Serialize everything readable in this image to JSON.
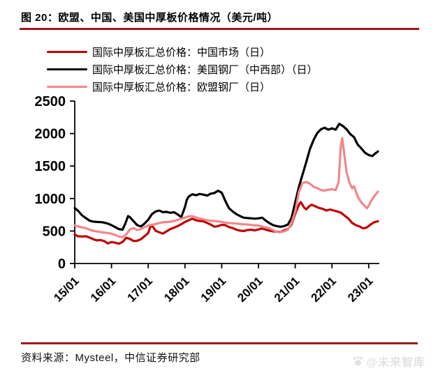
{
  "page": {
    "title": "图 20：欧盟、中国、美国中厚板价格情况（美元/吨）",
    "source": "资料来源：Mysteel，中信证券研究部",
    "watermark": "@未来智库",
    "accent_color": "#A01818"
  },
  "chart_data": {
    "type": "line",
    "title": "欧盟、中国、美国中厚板价格情况",
    "unit": "美元/吨",
    "grid": false,
    "legend_position": "top-left",
    "ylim": [
      0,
      2500
    ],
    "yticks": [
      0,
      500,
      1000,
      1500,
      2000,
      2500
    ],
    "x_range": [
      15,
      23.3
    ],
    "xticks": [
      {
        "x": 15,
        "label": "15/01"
      },
      {
        "x": 16,
        "label": "16/01"
      },
      {
        "x": 17,
        "label": "17/01"
      },
      {
        "x": 18,
        "label": "18/01"
      },
      {
        "x": 19,
        "label": "19/01"
      },
      {
        "x": 20,
        "label": "20/01"
      },
      {
        "x": 21,
        "label": "21/01"
      },
      {
        "x": 22,
        "label": "22/01"
      },
      {
        "x": 23,
        "label": "23/01"
      }
    ],
    "series": [
      {
        "name": "国际中厚板汇总价格：中国市场（日）",
        "color": "#C00000",
        "points": [
          [
            15.0,
            450
          ],
          [
            15.08,
            420
          ],
          [
            15.2,
            415
          ],
          [
            15.3,
            420
          ],
          [
            15.4,
            400
          ],
          [
            15.5,
            375
          ],
          [
            15.6,
            355
          ],
          [
            15.7,
            360
          ],
          [
            15.8,
            345
          ],
          [
            15.9,
            310
          ],
          [
            16.0,
            330
          ],
          [
            16.1,
            320
          ],
          [
            16.2,
            305
          ],
          [
            16.3,
            330
          ],
          [
            16.4,
            395
          ],
          [
            16.5,
            380
          ],
          [
            16.6,
            345
          ],
          [
            16.7,
            350
          ],
          [
            16.8,
            375
          ],
          [
            16.9,
            420
          ],
          [
            17.0,
            470
          ],
          [
            17.05,
            555
          ],
          [
            17.1,
            585
          ],
          [
            17.2,
            505
          ],
          [
            17.3,
            480
          ],
          [
            17.4,
            460
          ],
          [
            17.5,
            495
          ],
          [
            17.6,
            530
          ],
          [
            17.7,
            550
          ],
          [
            17.8,
            575
          ],
          [
            17.9,
            605
          ],
          [
            18.0,
            640
          ],
          [
            18.1,
            665
          ],
          [
            18.2,
            690
          ],
          [
            18.3,
            665
          ],
          [
            18.4,
            655
          ],
          [
            18.5,
            650
          ],
          [
            18.6,
            625
          ],
          [
            18.7,
            600
          ],
          [
            18.8,
            565
          ],
          [
            18.9,
            575
          ],
          [
            19.0,
            595
          ],
          [
            19.1,
            590
          ],
          [
            19.2,
            560
          ],
          [
            19.3,
            545
          ],
          [
            19.4,
            520
          ],
          [
            19.5,
            505
          ],
          [
            19.6,
            500
          ],
          [
            19.7,
            515
          ],
          [
            19.8,
            520
          ],
          [
            19.9,
            510
          ],
          [
            20.0,
            525
          ],
          [
            20.1,
            540
          ],
          [
            20.2,
            520
          ],
          [
            20.3,
            505
          ],
          [
            20.4,
            495
          ],
          [
            20.5,
            490
          ],
          [
            20.6,
            485
          ],
          [
            20.7,
            510
          ],
          [
            20.8,
            530
          ],
          [
            20.9,
            600
          ],
          [
            21.0,
            765
          ],
          [
            21.1,
            905
          ],
          [
            21.15,
            945
          ],
          [
            21.2,
            900
          ],
          [
            21.25,
            855
          ],
          [
            21.3,
            835
          ],
          [
            21.4,
            890
          ],
          [
            21.45,
            905
          ],
          [
            21.55,
            880
          ],
          [
            21.65,
            855
          ],
          [
            21.75,
            840
          ],
          [
            21.85,
            815
          ],
          [
            21.95,
            830
          ],
          [
            22.05,
            815
          ],
          [
            22.15,
            800
          ],
          [
            22.25,
            780
          ],
          [
            22.35,
            735
          ],
          [
            22.45,
            690
          ],
          [
            22.55,
            625
          ],
          [
            22.65,
            590
          ],
          [
            22.75,
            570
          ],
          [
            22.85,
            540
          ],
          [
            22.95,
            555
          ],
          [
            23.05,
            600
          ],
          [
            23.15,
            635
          ],
          [
            23.25,
            650
          ]
        ]
      },
      {
        "name": "国际中厚板汇总价格：美国钢厂（中西部）（日）",
        "color": "#000000",
        "points": [
          [
            15.0,
            855
          ],
          [
            15.1,
            805
          ],
          [
            15.2,
            740
          ],
          [
            15.3,
            700
          ],
          [
            15.4,
            660
          ],
          [
            15.5,
            645
          ],
          [
            15.6,
            640
          ],
          [
            15.75,
            635
          ],
          [
            15.9,
            615
          ],
          [
            16.0,
            590
          ],
          [
            16.1,
            560
          ],
          [
            16.2,
            530
          ],
          [
            16.3,
            520
          ],
          [
            16.38,
            620
          ],
          [
            16.45,
            730
          ],
          [
            16.5,
            715
          ],
          [
            16.6,
            650
          ],
          [
            16.7,
            590
          ],
          [
            16.8,
            570
          ],
          [
            16.9,
            615
          ],
          [
            17.0,
            675
          ],
          [
            17.1,
            760
          ],
          [
            17.2,
            800
          ],
          [
            17.3,
            815
          ],
          [
            17.4,
            790
          ],
          [
            17.5,
            795
          ],
          [
            17.6,
            780
          ],
          [
            17.7,
            790
          ],
          [
            17.8,
            755
          ],
          [
            17.9,
            715
          ],
          [
            18.0,
            870
          ],
          [
            18.05,
            980
          ],
          [
            18.1,
            1030
          ],
          [
            18.2,
            1065
          ],
          [
            18.3,
            1050
          ],
          [
            18.4,
            1070
          ],
          [
            18.5,
            1060
          ],
          [
            18.6,
            1045
          ],
          [
            18.7,
            1075
          ],
          [
            18.8,
            1085
          ],
          [
            18.9,
            1120
          ],
          [
            19.0,
            1090
          ],
          [
            19.1,
            960
          ],
          [
            19.2,
            850
          ],
          [
            19.3,
            800
          ],
          [
            19.4,
            760
          ],
          [
            19.5,
            730
          ],
          [
            19.6,
            705
          ],
          [
            19.7,
            700
          ],
          [
            19.8,
            695
          ],
          [
            19.9,
            690
          ],
          [
            20.0,
            695
          ],
          [
            20.1,
            705
          ],
          [
            20.2,
            660
          ],
          [
            20.3,
            620
          ],
          [
            20.4,
            590
          ],
          [
            20.5,
            575
          ],
          [
            20.6,
            565
          ],
          [
            20.7,
            575
          ],
          [
            20.8,
            600
          ],
          [
            20.9,
            700
          ],
          [
            21.0,
            940
          ],
          [
            21.1,
            1180
          ],
          [
            21.2,
            1370
          ],
          [
            21.3,
            1560
          ],
          [
            21.4,
            1760
          ],
          [
            21.5,
            1900
          ],
          [
            21.6,
            2010
          ],
          [
            21.7,
            2065
          ],
          [
            21.8,
            2090
          ],
          [
            21.9,
            2060
          ],
          [
            22.0,
            2080
          ],
          [
            22.1,
            2060
          ],
          [
            22.2,
            2150
          ],
          [
            22.3,
            2115
          ],
          [
            22.4,
            2065
          ],
          [
            22.5,
            1990
          ],
          [
            22.6,
            1945
          ],
          [
            22.7,
            1830
          ],
          [
            22.8,
            1770
          ],
          [
            22.9,
            1705
          ],
          [
            23.0,
            1670
          ],
          [
            23.1,
            1655
          ],
          [
            23.15,
            1680
          ],
          [
            23.25,
            1725
          ]
        ]
      },
      {
        "name": "国际中厚板汇总价格：欧盟钢厂（日）",
        "color": "#F2868B",
        "points": [
          [
            15.0,
            585
          ],
          [
            15.1,
            570
          ],
          [
            15.2,
            555
          ],
          [
            15.3,
            545
          ],
          [
            15.45,
            510
          ],
          [
            15.6,
            495
          ],
          [
            15.75,
            480
          ],
          [
            15.9,
            470
          ],
          [
            16.0,
            458
          ],
          [
            16.1,
            440
          ],
          [
            16.2,
            415
          ],
          [
            16.3,
            405
          ],
          [
            16.4,
            445
          ],
          [
            16.5,
            525
          ],
          [
            16.6,
            545
          ],
          [
            16.7,
            515
          ],
          [
            16.8,
            530
          ],
          [
            16.9,
            560
          ],
          [
            17.0,
            585
          ],
          [
            17.1,
            595
          ],
          [
            17.25,
            615
          ],
          [
            17.4,
            635
          ],
          [
            17.55,
            640
          ],
          [
            17.7,
            655
          ],
          [
            17.85,
            680
          ],
          [
            18.0,
            705
          ],
          [
            18.1,
            725
          ],
          [
            18.2,
            730
          ],
          [
            18.35,
            700
          ],
          [
            18.5,
            680
          ],
          [
            18.65,
            660
          ],
          [
            18.8,
            655
          ],
          [
            18.95,
            645
          ],
          [
            19.1,
            630
          ],
          [
            19.25,
            620
          ],
          [
            19.4,
            615
          ],
          [
            19.55,
            605
          ],
          [
            19.7,
            600
          ],
          [
            19.85,
            590
          ],
          [
            20.0,
            585
          ],
          [
            20.15,
            560
          ],
          [
            20.3,
            540
          ],
          [
            20.45,
            500
          ],
          [
            20.55,
            480
          ],
          [
            20.7,
            495
          ],
          [
            20.8,
            520
          ],
          [
            20.9,
            620
          ],
          [
            21.0,
            800
          ],
          [
            21.1,
            1100
          ],
          [
            21.2,
            1240
          ],
          [
            21.3,
            1255
          ],
          [
            21.4,
            1230
          ],
          [
            21.5,
            1180
          ],
          [
            21.6,
            1160
          ],
          [
            21.7,
            1130
          ],
          [
            21.8,
            1120
          ],
          [
            21.9,
            1135
          ],
          [
            22.0,
            1145
          ],
          [
            22.1,
            1130
          ],
          [
            22.18,
            1250
          ],
          [
            22.24,
            1800
          ],
          [
            22.28,
            1930
          ],
          [
            22.33,
            1700
          ],
          [
            22.4,
            1400
          ],
          [
            22.48,
            1240
          ],
          [
            22.55,
            1160
          ],
          [
            22.6,
            1190
          ],
          [
            22.7,
            1030
          ],
          [
            22.8,
            940
          ],
          [
            22.9,
            880
          ],
          [
            22.95,
            850
          ],
          [
            23.0,
            890
          ],
          [
            23.05,
            945
          ],
          [
            23.15,
            1035
          ],
          [
            23.25,
            1105
          ]
        ]
      }
    ]
  }
}
